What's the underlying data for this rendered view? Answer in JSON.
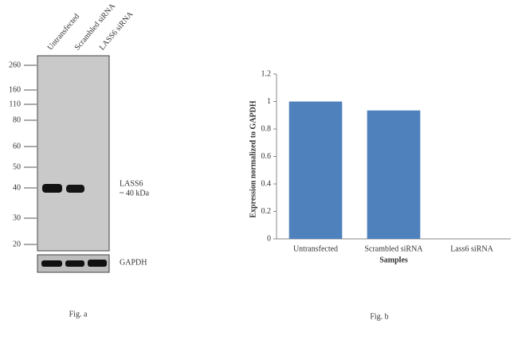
{
  "western_blot": {
    "lanes": [
      "Untransfected",
      "Scrambled siRNA",
      "LASS6 siRNA"
    ],
    "markers": [
      260,
      160,
      110,
      80,
      60,
      50,
      40,
      30,
      20
    ],
    "band_label": "LASS6",
    "band_size": "~ 40 kDa",
    "control_label": "GAPDH",
    "caption": "Fig. a"
  },
  "chart_data": {
    "type": "bar",
    "categories": [
      "Untransfected",
      "Scrambled siRNA",
      "Lass6 siRNA"
    ],
    "values": [
      1,
      0.935,
      0
    ],
    "color": "#4f81bd",
    "ylim": [
      0,
      1.2
    ],
    "yticks": [
      0,
      0.2,
      0.4,
      0.6,
      0.8,
      1,
      1.2
    ],
    "y_label": "Expression  normalized to GAPDH",
    "x_label": "Samples",
    "caption": "Fig. b"
  }
}
